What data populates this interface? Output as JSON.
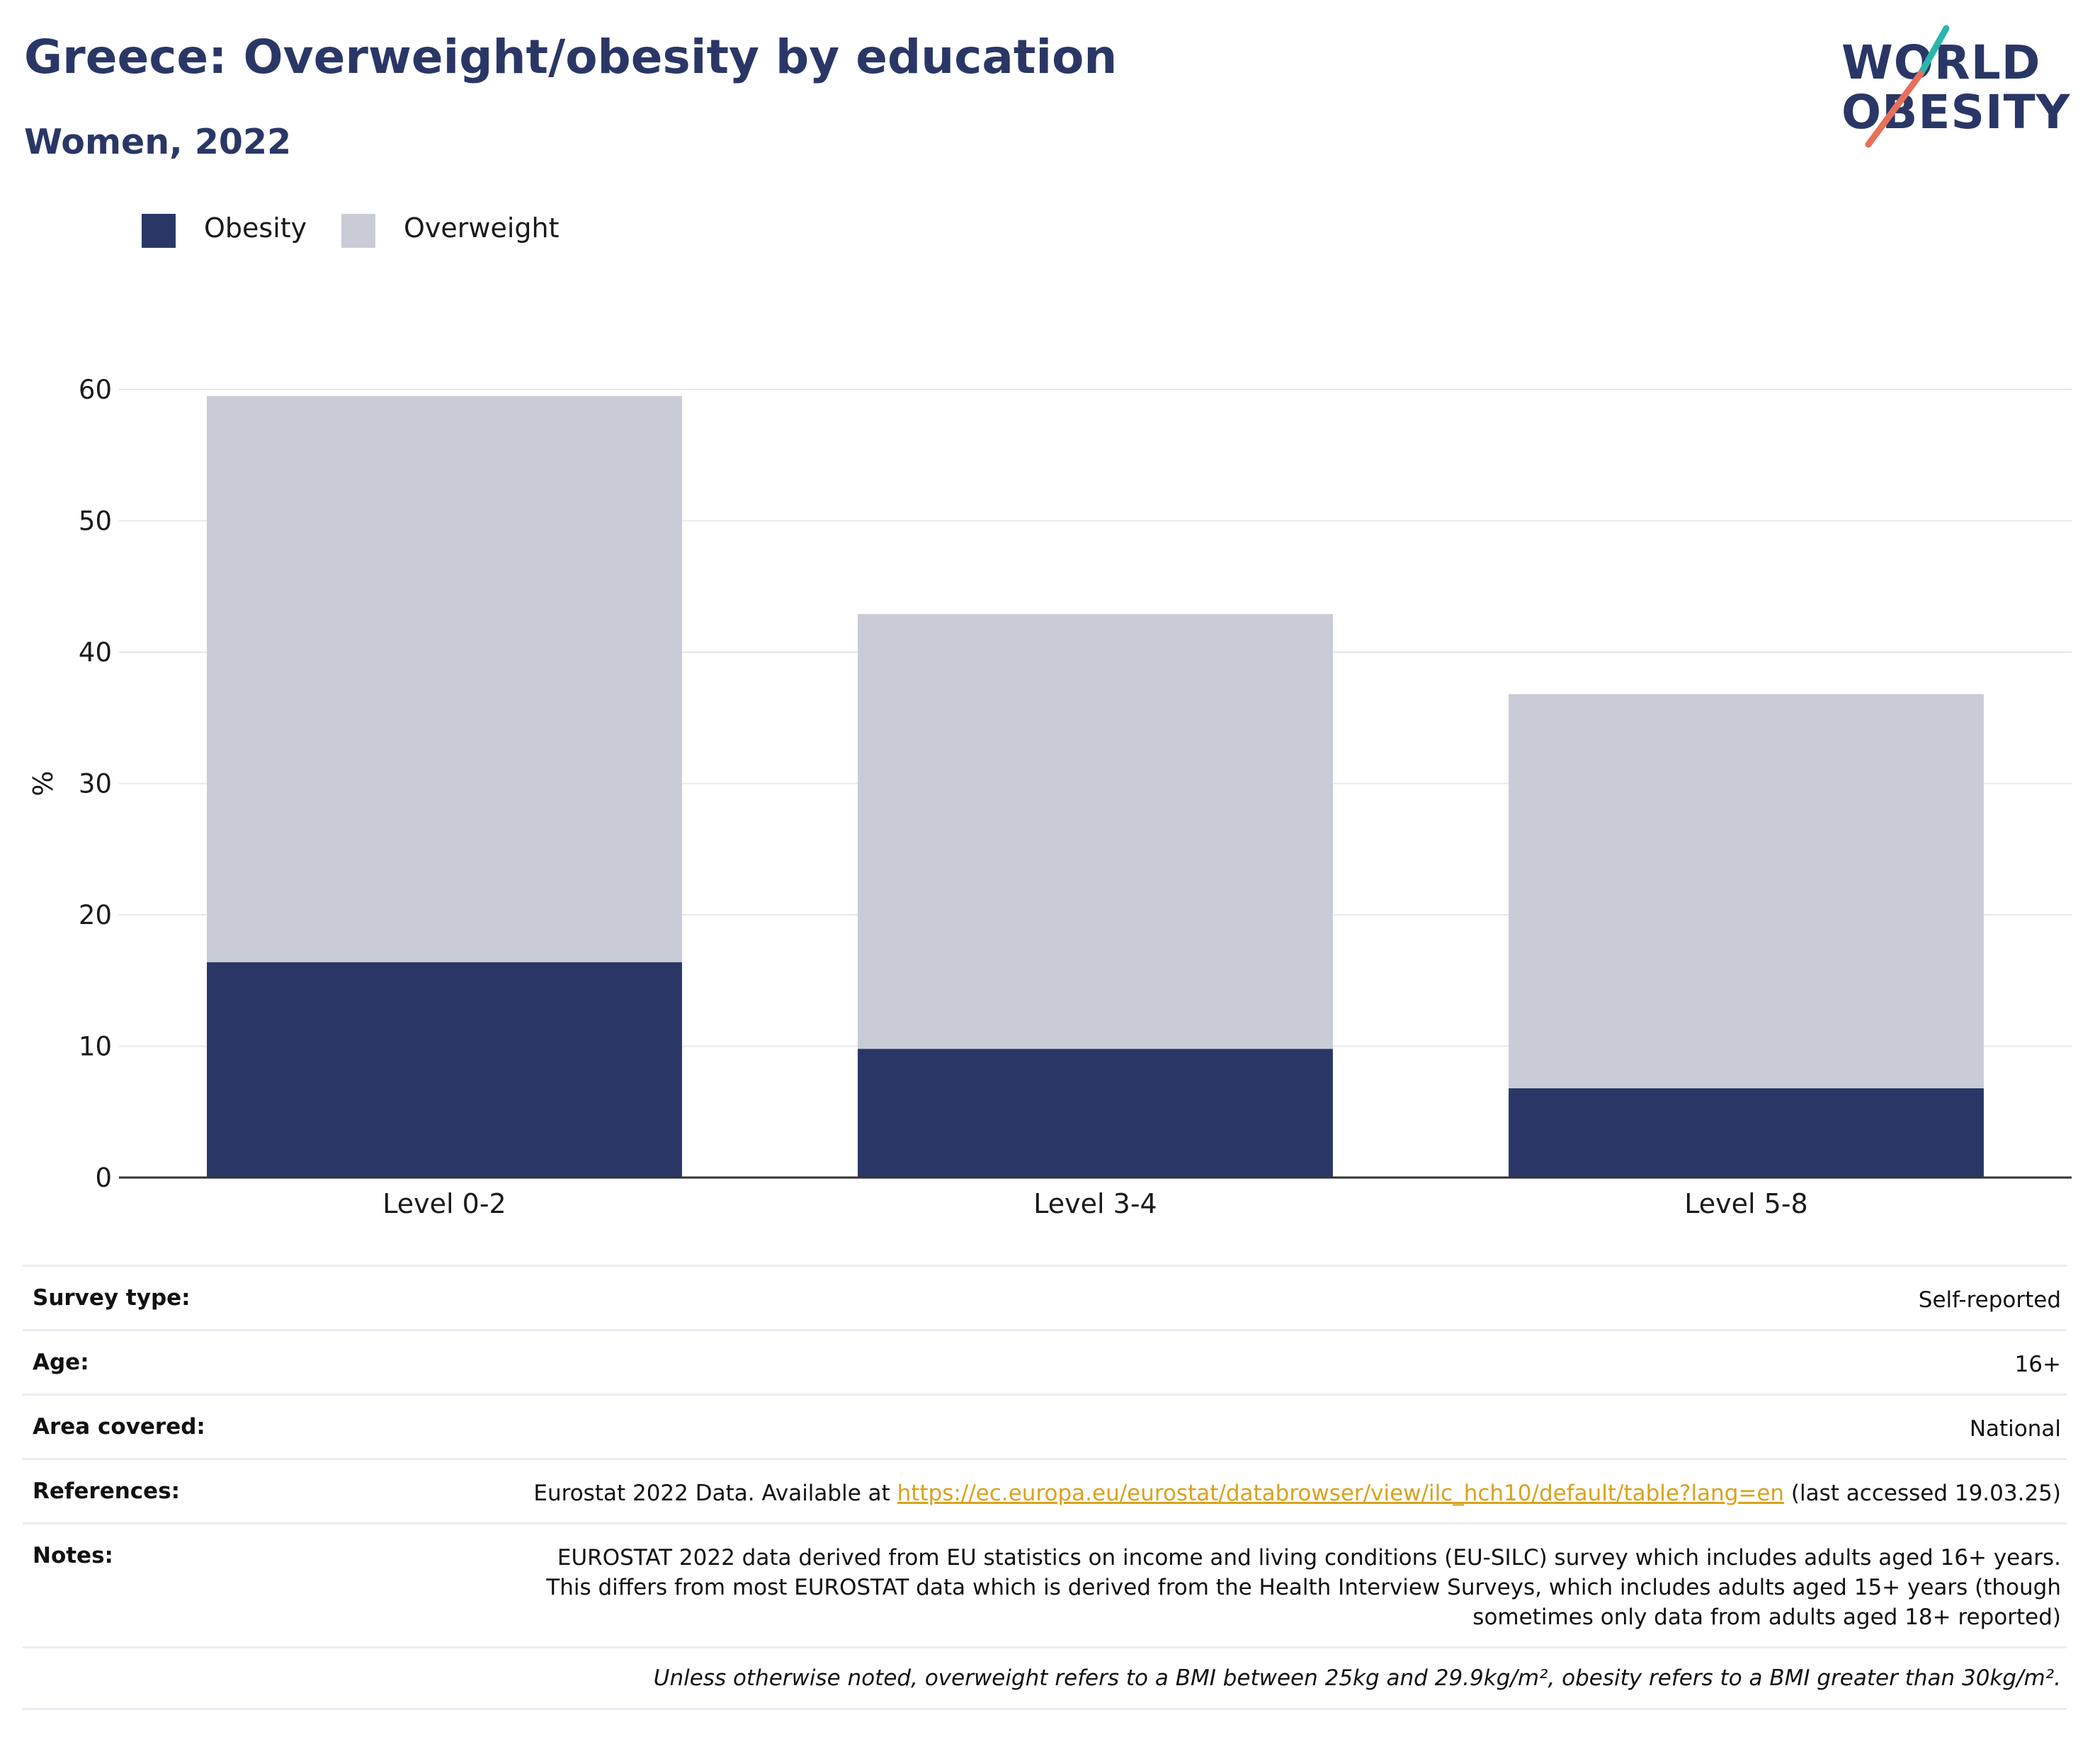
{
  "title": "Greece: Overweight/obesity by education",
  "subtitle": "Women, 2022",
  "logo": {
    "line1": "WORLD",
    "line2": "OBESITY",
    "text_color": "#2a3766",
    "accent_teal": "#2bb5ad",
    "accent_coral": "#e8705a"
  },
  "legend": [
    {
      "label": "Obesity",
      "color": "#2a3766"
    },
    {
      "label": "Overweight",
      "color": "#c9ccd7"
    }
  ],
  "chart_data": {
    "type": "bar",
    "stacked": true,
    "categories": [
      "Level 0-2",
      "Level 3-4",
      "Level 5-8"
    ],
    "series": [
      {
        "name": "Obesity",
        "values": [
          16.4,
          9.8,
          6.8
        ],
        "color": "#2a3766"
      },
      {
        "name": "Overweight",
        "values": [
          43.1,
          33.1,
          30.0
        ],
        "color": "#c9ccd7"
      }
    ],
    "ylabel": "%",
    "ylim": [
      0,
      60
    ],
    "yticks": [
      0,
      10,
      20,
      30,
      40,
      50,
      60
    ],
    "grid": true
  },
  "info": {
    "survey_type": {
      "label": "Survey type:",
      "value": "Self-reported"
    },
    "age": {
      "label": "Age:",
      "value": "16+"
    },
    "area": {
      "label": "Area covered:",
      "value": "National"
    },
    "references": {
      "label": "References:",
      "prefix": "Eurostat 2022 Data. Available at ",
      "link": "https://ec.europa.eu/eurostat/databrowser/view/ilc_hch10/default/table?lang=en",
      "suffix": " (last accessed 19.03.25)"
    },
    "notes": {
      "label": "Notes:",
      "value": "EUROSTAT 2022 data derived from EU statistics on income and living conditions (EU-SILC) survey which includes adults aged 16+ years. This differs from most EUROSTAT data which is derived from the Health Interview Surveys, which includes adults aged 15+ years (though sometimes only data from adults aged 18+ reported)"
    },
    "footnote": "Unless otherwise noted, overweight refers to a BMI between 25kg and 29.9kg/m², obesity refers to a BMI greater than 30kg/m²."
  }
}
